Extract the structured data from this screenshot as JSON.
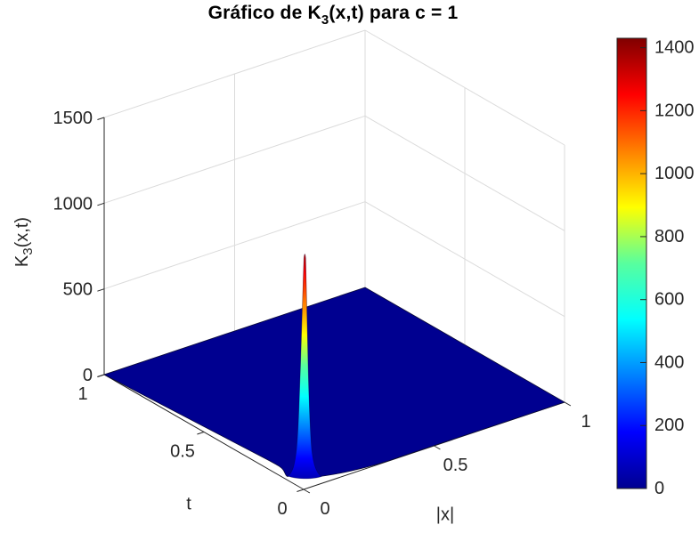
{
  "figure": {
    "background": "#FFFFFF"
  },
  "chart_data": {
    "type": "surface",
    "title": "Gráfico de K_3(x,t) para c = 1",
    "title_parts": {
      "pre": "Gráfico de K",
      "sub": "3",
      "post": "(x,t) para c = 1"
    },
    "xlabel": "|x|",
    "ylabel": "t",
    "zlabel": "K_3(x,t)",
    "zlabel_parts": {
      "pre": "K",
      "sub": "3",
      "post": "(x,t)"
    },
    "x_range": [
      0,
      1
    ],
    "t_range": [
      0,
      1
    ],
    "z_range": [
      0,
      1500
    ],
    "x_ticks": [
      0,
      0.5,
      1
    ],
    "t_ticks": [
      1,
      0.5,
      0
    ],
    "z_ticks": [
      0,
      500,
      1000,
      1500
    ],
    "grid": true,
    "view": "MATLAB default 3-D view (az -37.5, el 30), box walls with light grid",
    "surface": {
      "description": "Surface is flat at z≈0 (dark blue) over the whole (|x|,t) domain except a single very sharp peak at |x|≈0 as t→0, with a small ripple at the peak base near the front corner.",
      "function": "K3(x,t) = (4·π·c·t)^(-3/2) · exp(-|x|²/(4·c·t))",
      "c": 1,
      "peak": {
        "x": 0,
        "t": 0.02,
        "z": 1400
      },
      "baseline_z": 0
    },
    "colorbar": {
      "min": 0,
      "max": 1430,
      "ticks": [
        0,
        200,
        400,
        600,
        800,
        1000,
        1200,
        1400
      ],
      "colormap": "jet",
      "jet_stops": [
        {
          "at": 0.0,
          "color": "#000090"
        },
        {
          "at": 0.125,
          "color": "#0000FF"
        },
        {
          "at": 0.375,
          "color": "#00FFFF"
        },
        {
          "at": 0.5,
          "color": "#58FF9E"
        },
        {
          "at": 0.625,
          "color": "#FFFF00"
        },
        {
          "at": 0.875,
          "color": "#FF0000"
        },
        {
          "at": 1.0,
          "color": "#800000"
        }
      ]
    },
    "colors": {
      "surface_low": "#000090",
      "peak_top": "#800000",
      "grid": "#DBDBDB",
      "axis": "#262626",
      "background": "#FFFFFF"
    }
  }
}
